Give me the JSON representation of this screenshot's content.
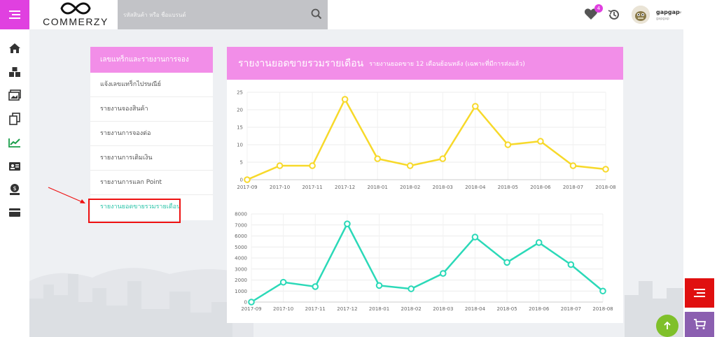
{
  "app": {
    "logo_text": "COMMERZY"
  },
  "search": {
    "placeholder": "รหัสสินค้า หรือ ชื่อแบรนด์"
  },
  "header": {
    "wishlist_count": "4",
    "user_name": "gapgap",
    "user_sub": "gapgap"
  },
  "side_menu": {
    "title": "เลขแทร็กและรายงานการจอง",
    "items": [
      {
        "label": "แจ้งเลขแทร็กไปรษณีย์"
      },
      {
        "label": "รายงานจองสินค้า"
      },
      {
        "label": "รายงานการจองต่อ"
      },
      {
        "label": "รายงานการเติมเงิน"
      },
      {
        "label": "รายงานการแลก Point"
      },
      {
        "label": "รายงานยอดขายรวมรายเดือน"
      }
    ]
  },
  "report": {
    "title": "รายงานยอดขายรวมรายเดือน",
    "subtitle": "รายงานยอดขาย 12 เดือนย้อนหลัง (เฉพาะที่มีการส่งแล้ว)"
  },
  "icons": {
    "iconbar": [
      "home-icon",
      "boxes-icon",
      "images-icon",
      "copy-icon",
      "chart-line-icon",
      "id-card-icon",
      "money-bag-icon",
      "credit-card-icon"
    ]
  },
  "colors": {
    "accent": "#f28ee8",
    "menu_btn": "#e040e0",
    "active_text": "#2bc4a8",
    "series1": "#f7d92a",
    "series2": "#2bd9b8"
  },
  "chart_data": [
    {
      "type": "line",
      "x": [
        "2017-09",
        "2017-10",
        "2017-11",
        "2017-12",
        "2018-01",
        "2018-02",
        "2018-03",
        "2018-04",
        "2018-05",
        "2018-06",
        "2018-07",
        "2018-08"
      ],
      "series": [
        {
          "values": [
            0,
            4,
            4,
            23,
            6,
            4,
            6,
            21,
            10,
            11,
            4,
            3
          ]
        }
      ],
      "ylim": [
        0,
        25
      ],
      "yticks": [
        0,
        5,
        10,
        15,
        20,
        25
      ],
      "grid": true,
      "color": "#f7d92a"
    },
    {
      "type": "line",
      "x": [
        "2017-09",
        "2017-10",
        "2017-11",
        "2017-12",
        "2018-01",
        "2018-02",
        "2018-03",
        "2018-04",
        "2018-05",
        "2018-06",
        "2018-07",
        "2018-08"
      ],
      "series": [
        {
          "values": [
            0,
            1800,
            1400,
            7100,
            1500,
            1200,
            2600,
            5900,
            3600,
            5400,
            3400,
            1000
          ]
        }
      ],
      "ylim": [
        0,
        8000
      ],
      "yticks": [
        0,
        1000,
        2000,
        3000,
        4000,
        5000,
        6000,
        7000,
        8000
      ],
      "grid": true,
      "color": "#2bd9b8"
    }
  ]
}
